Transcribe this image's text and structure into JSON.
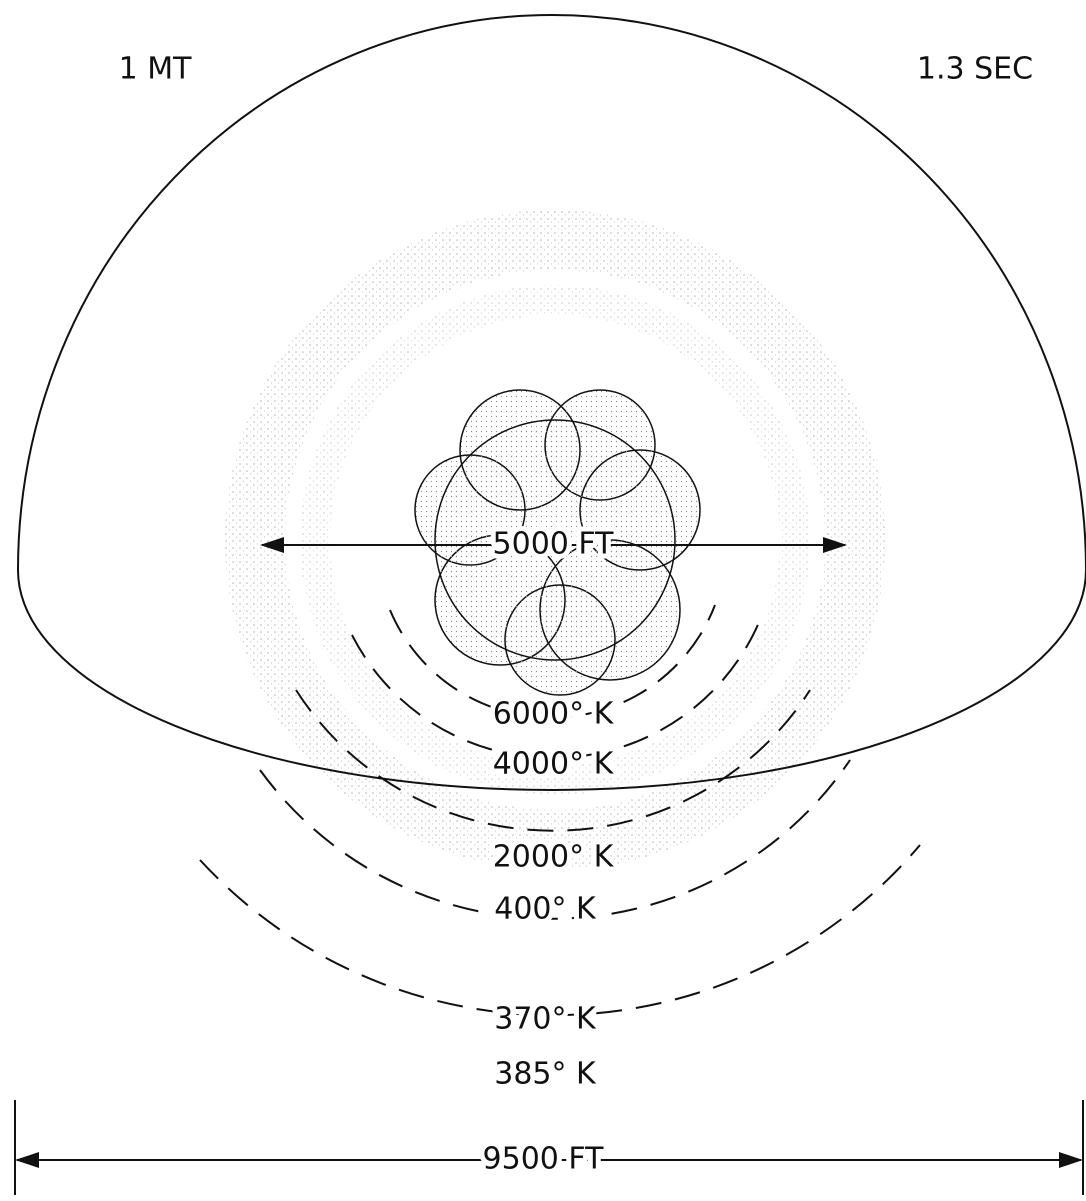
{
  "header": {
    "yield": "1 MT",
    "time": "1.3 SEC"
  },
  "fireball": {
    "diameter_label": "5000 FT"
  },
  "isotherms": [
    "6000° K",
    "4000° K",
    "2000° K",
    "400° K",
    "370° K",
    "385° K"
  ],
  "overall": {
    "width_label": "9500 FT"
  }
}
